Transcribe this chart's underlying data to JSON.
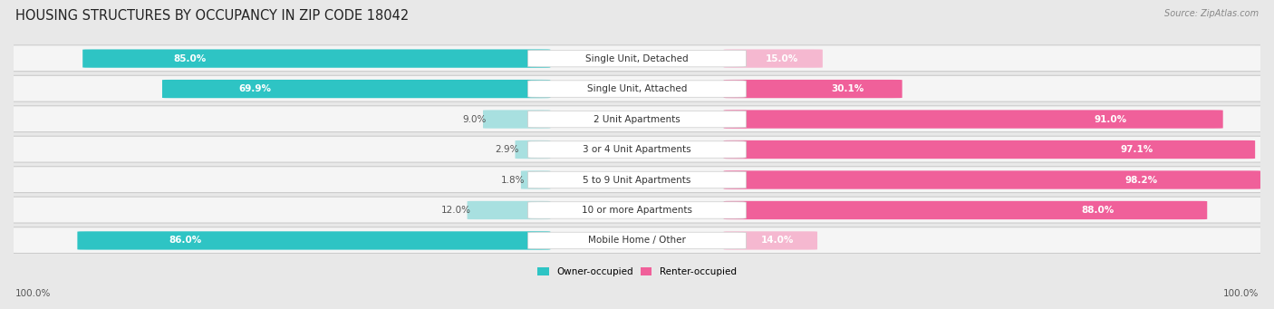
{
  "title": "HOUSING STRUCTURES BY OCCUPANCY IN ZIP CODE 18042",
  "source": "Source: ZipAtlas.com",
  "categories": [
    "Single Unit, Detached",
    "Single Unit, Attached",
    "2 Unit Apartments",
    "3 or 4 Unit Apartments",
    "5 to 9 Unit Apartments",
    "10 or more Apartments",
    "Mobile Home / Other"
  ],
  "owner_pct": [
    85.0,
    69.9,
    9.0,
    2.9,
    1.8,
    12.0,
    86.0
  ],
  "renter_pct": [
    15.0,
    30.1,
    91.0,
    97.1,
    98.2,
    88.0,
    14.0
  ],
  "owner_color": "#2ec4c4",
  "owner_color_light": "#a8e0e0",
  "renter_color": "#f0609a",
  "renter_color_light": "#f5b8d0",
  "bg_color": "#e8e8e8",
  "row_bg_color": "#f5f5f5",
  "row_border_color": "#cccccc",
  "title_fontsize": 10.5,
  "label_fontsize": 7.5,
  "pct_fontsize": 7.5,
  "tick_fontsize": 7.5,
  "source_fontsize": 7
}
